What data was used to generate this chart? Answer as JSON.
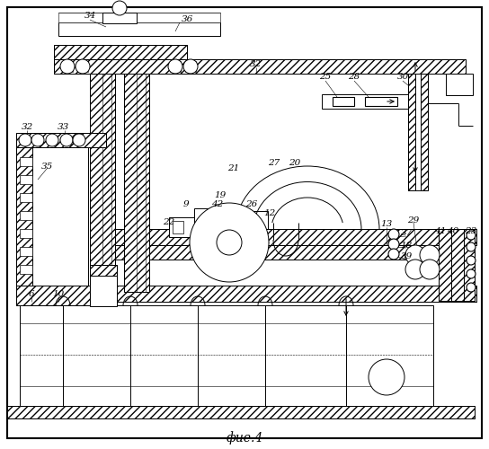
{
  "title": "фие.4",
  "bg_color": "#ffffff",
  "fig_width": 5.44,
  "fig_height": 5.0
}
